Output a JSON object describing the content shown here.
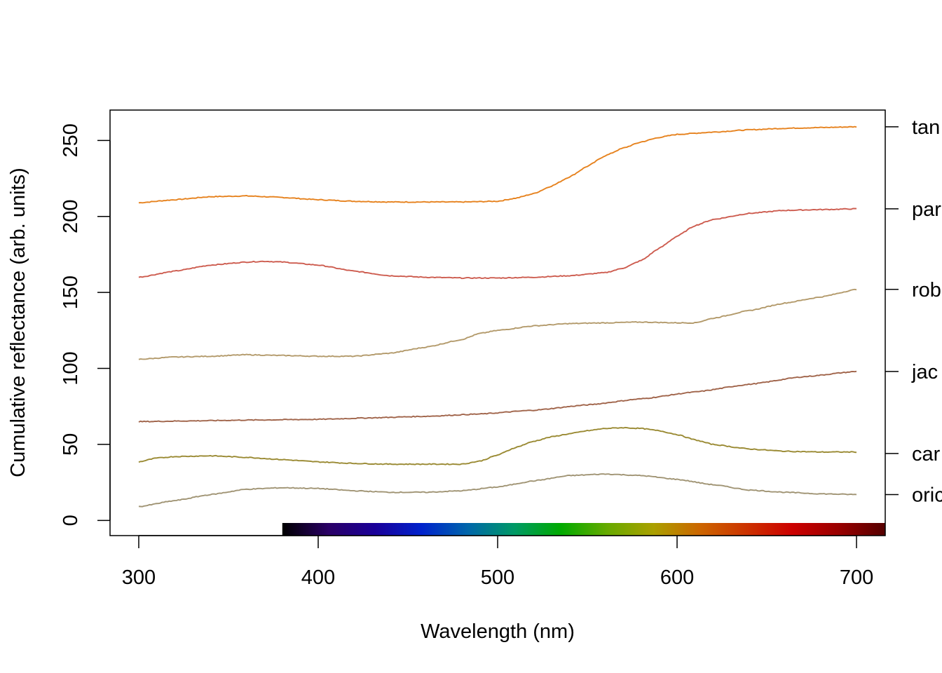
{
  "chart_data": {
    "type": "line",
    "title": "",
    "xlabel": "Wavelength (nm)",
    "ylabel": "Cumulative reflectance (arb. units)",
    "xlim": [
      284,
      716
    ],
    "ylim": [
      -10,
      270
    ],
    "x_ticks": [
      "300",
      "400",
      "500",
      "600",
      "700"
    ],
    "x_tick_values": [
      300,
      400,
      500,
      600,
      700
    ],
    "y_ticks": [
      "0",
      "50",
      "100",
      "150",
      "200",
      "250"
    ],
    "y_tick_values": [
      0,
      50,
      100,
      150,
      200,
      250
    ],
    "grid": false,
    "legend": "none",
    "color_strip": {
      "from_nm": 380,
      "to_nm": 716,
      "colors": [
        "#000000",
        "#2a0066",
        "#1a0099",
        "#0022cc",
        "#0066aa",
        "#009966",
        "#00aa00",
        "#66aa00",
        "#aaa000",
        "#cc6600",
        "#cc3300",
        "#cc0000",
        "#990000",
        "#550000"
      ]
    },
    "series": [
      {
        "label": "tan",
        "color": "#E6821E",
        "label_y": 259,
        "x": [
          300,
          320,
          340,
          360,
          380,
          400,
          420,
          440,
          460,
          480,
          500,
          510,
          520,
          530,
          540,
          550,
          560,
          570,
          580,
          590,
          600,
          620,
          640,
          660,
          680,
          700
        ],
        "y": [
          209,
          211,
          213,
          213.5,
          212.5,
          211,
          210,
          209.5,
          209.5,
          209.5,
          210,
          212,
          215,
          220,
          226,
          233,
          240,
          245,
          249,
          252,
          254,
          255.5,
          257,
          258,
          258.5,
          259
        ]
      },
      {
        "label": "par",
        "color": "#CD5C4F",
        "label_y": 205,
        "x": [
          300,
          320,
          340,
          360,
          370,
          380,
          400,
          420,
          440,
          460,
          480,
          500,
          520,
          540,
          560,
          570,
          580,
          590,
          600,
          610,
          620,
          640,
          660,
          680,
          700
        ],
        "y": [
          160,
          164,
          168,
          170,
          170.5,
          170,
          168,
          164,
          161,
          160,
          159.5,
          159.5,
          160,
          161,
          163,
          166,
          171,
          179,
          187,
          194,
          198,
          202,
          204,
          204.5,
          205
        ]
      },
      {
        "label": "rob",
        "color": "#B39A6B",
        "label_y": 152,
        "x": [
          300,
          320,
          340,
          360,
          380,
          400,
          420,
          440,
          460,
          480,
          490,
          500,
          520,
          540,
          560,
          580,
          600,
          610,
          620,
          640,
          660,
          680,
          700
        ],
        "y": [
          106,
          107.5,
          108,
          109,
          108.5,
          108,
          108,
          110,
          114,
          119,
          123,
          125,
          128,
          129.5,
          130,
          130.5,
          130,
          130,
          133,
          138,
          143,
          147,
          152
        ]
      },
      {
        "label": "jac",
        "color": "#A0644A",
        "label_y": 98,
        "x": [
          300,
          330,
          360,
          400,
          430,
          460,
          490,
          520,
          550,
          580,
          610,
          640,
          670,
          700
        ],
        "y": [
          65,
          65.5,
          66,
          66.5,
          67.5,
          68.5,
          70,
          72.5,
          76,
          80,
          84.5,
          89.5,
          94.5,
          98
        ]
      },
      {
        "label": "car",
        "color": "#9A8A33",
        "label_y": 44,
        "x": [
          300,
          310,
          320,
          340,
          360,
          380,
          400,
          420,
          440,
          460,
          480,
          490,
          500,
          510,
          520,
          530,
          540,
          550,
          560,
          570,
          580,
          590,
          600,
          610,
          620,
          640,
          660,
          680,
          700
        ],
        "y": [
          38.5,
          41,
          42,
          42.5,
          41.5,
          40,
          38.5,
          37.5,
          37,
          37,
          37,
          39,
          43,
          48,
          52,
          55,
          57,
          59,
          60.5,
          61,
          60.5,
          59,
          56.5,
          53,
          50,
          47,
          45.5,
          45,
          45
        ]
      },
      {
        "label": "oric",
        "color": "#A09474",
        "label_y": 17,
        "x": [
          300,
          320,
          340,
          360,
          380,
          400,
          420,
          440,
          460,
          480,
          500,
          520,
          540,
          560,
          580,
          600,
          620,
          640,
          660,
          680,
          700
        ],
        "y": [
          9,
          13,
          17,
          20.5,
          21.5,
          21,
          19.5,
          18.5,
          18.5,
          19.5,
          22,
          26,
          29.5,
          30.5,
          29.5,
          27,
          23.5,
          20,
          18.5,
          17.5,
          17
        ]
      }
    ]
  }
}
